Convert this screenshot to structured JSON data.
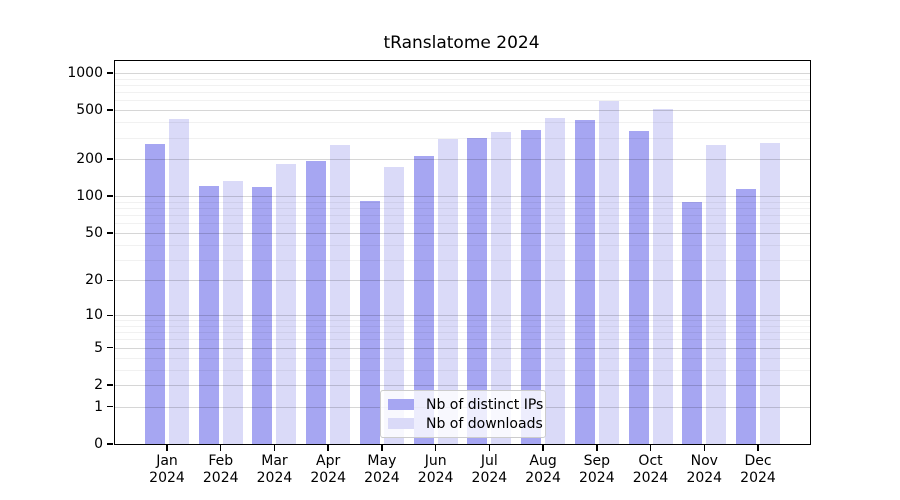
{
  "title": "tRanslatome 2024",
  "legend": {
    "items": [
      {
        "label": "Nb of distinct IPs",
        "color": "#a6a6f2"
      },
      {
        "label": "Nb of downloads",
        "color": "#dadaf8"
      }
    ]
  },
  "chart_data": {
    "type": "bar",
    "title": "tRanslatome 2024",
    "categories": [
      "Jan",
      "Feb",
      "Mar",
      "Apr",
      "May",
      "Jun",
      "Jul",
      "Aug",
      "Sep",
      "Oct",
      "Nov",
      "Dec"
    ],
    "category_year": "2024",
    "series": [
      {
        "name": "Nb of distinct IPs",
        "color": "#a6a6f2",
        "values": [
          268,
          121,
          119,
          194,
          92,
          213,
          296,
          346,
          414,
          340,
          89,
          115
        ]
      },
      {
        "name": "Nb of downloads",
        "color": "#dadaf8",
        "values": [
          427,
          133,
          182,
          259,
          172,
          291,
          335,
          430,
          595,
          515,
          260,
          273
        ]
      }
    ],
    "xlabel": "",
    "ylabel": "",
    "y_scale": "log10(1+x)",
    "ylim": [
      0,
      1250
    ],
    "y_ticks": [
      0,
      1,
      2,
      5,
      10,
      20,
      50,
      100,
      200,
      500,
      1000
    ],
    "y_minor_ticks": [
      3,
      4,
      6,
      7,
      8,
      9,
      30,
      40,
      60,
      70,
      80,
      90,
      300,
      400,
      600,
      700,
      800,
      900
    ],
    "grid": "on",
    "legend_position": "inside lower center"
  },
  "colors": {
    "ips_bar": "#a6a6f2",
    "downloads_bar": "#dadaf8",
    "axis": "#000000",
    "grid_major": "rgba(0,0,0,0.16)",
    "grid_minor": "rgba(0,0,0,0.055)",
    "legend_background": "rgba(255,255,255,0.8)",
    "legend_border": "#cccccc"
  }
}
